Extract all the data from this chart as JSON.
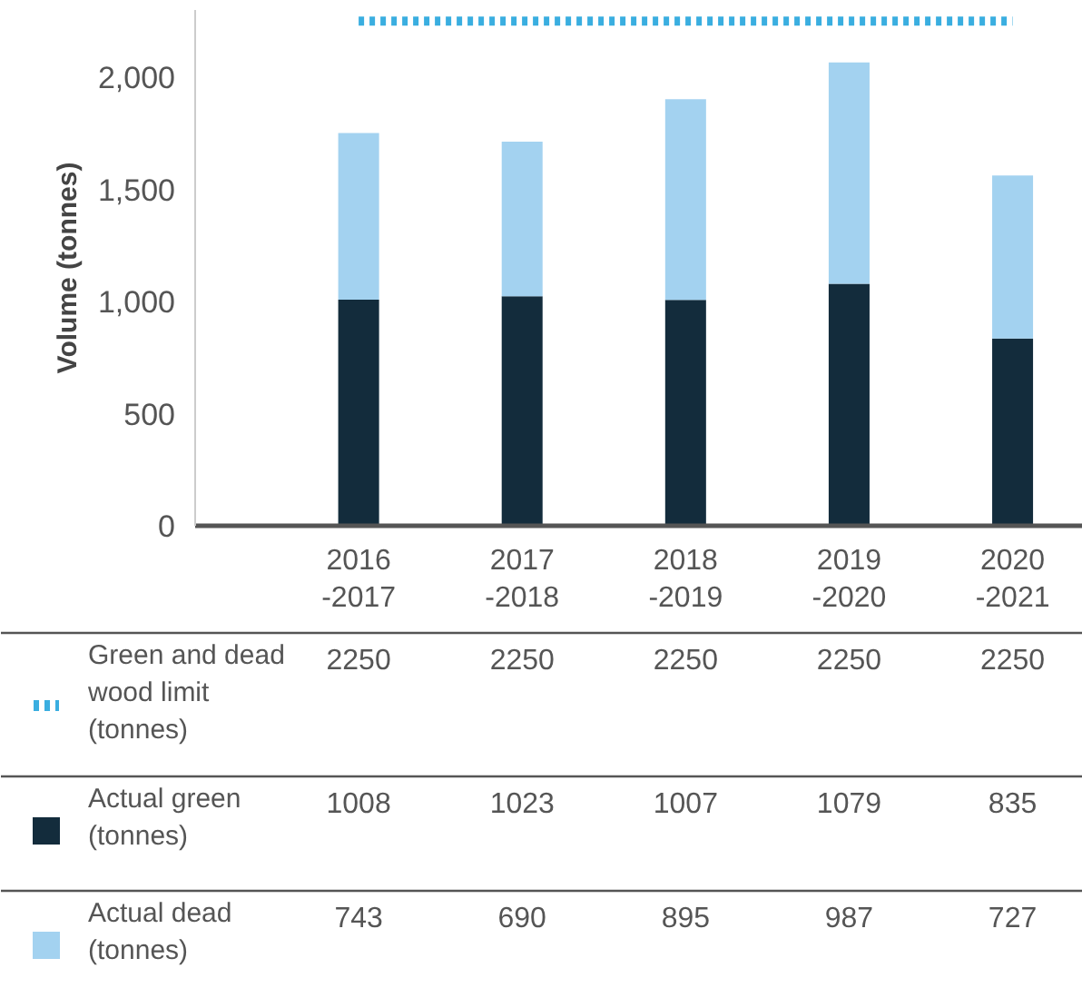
{
  "chart_data": {
    "type": "bar",
    "stacked": true,
    "ylabel": "Volume (tonnes)",
    "categories": [
      "2016-2017",
      "2017-2018",
      "2018-2019",
      "2019-2020",
      "2020-2021"
    ],
    "series": [
      {
        "name": "Green and dead wood limit (tonnes)",
        "type": "line",
        "line_style": "dotted",
        "color": "#3aaee0",
        "values": [
          2250,
          2250,
          2250,
          2250,
          2250
        ]
      },
      {
        "name": "Actual green (tonnes)",
        "color": "#132c3c",
        "values": [
          1008,
          1023,
          1007,
          1079,
          835
        ]
      },
      {
        "name": "Actual dead (tonnes)",
        "color": "#a3d2f0",
        "values": [
          743,
          690,
          895,
          987,
          727
        ]
      }
    ],
    "ylim": [
      0,
      2300
    ],
    "yticks": [
      {
        "value": 0,
        "label": "0"
      },
      {
        "value": 500,
        "label": "500"
      },
      {
        "value": 1000,
        "label": "1,000"
      },
      {
        "value": 1500,
        "label": "1,500"
      },
      {
        "value": 2000,
        "label": "2,000"
      }
    ],
    "grid": false,
    "legend": "bottom",
    "data_labels": true
  }
}
